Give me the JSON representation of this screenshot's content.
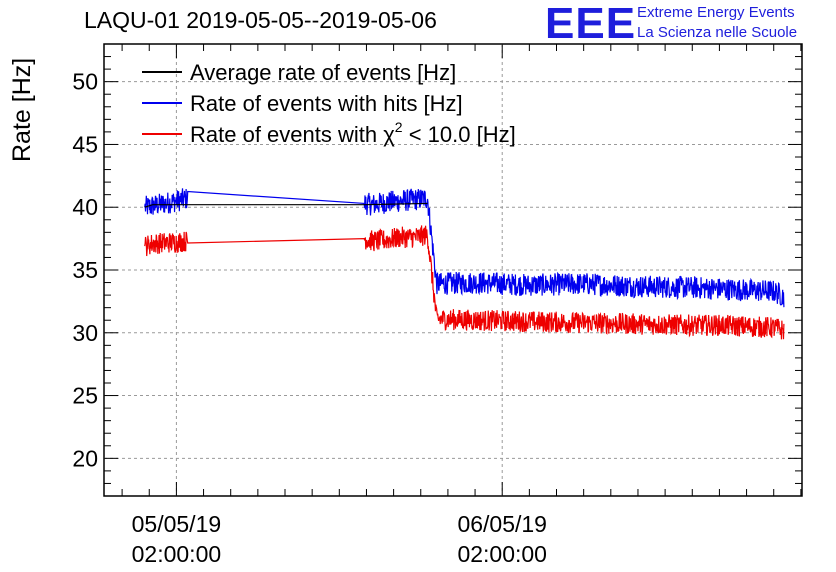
{
  "header": {
    "title": "LAQU-01 2019-05-05--2019-05-06",
    "logo_text": "EEE",
    "logo_line1": "Extreme Energy Events",
    "logo_line2": "La Scienza nelle Scuole"
  },
  "colors": {
    "average": "#000000",
    "hits": "#0000ee",
    "chi2": "#ee0000",
    "grid": "#9a9a9a",
    "logo": "#1e1edc"
  },
  "chart_data": {
    "type": "line",
    "title": "LAQU-01 2019-05-05--2019-05-06",
    "ylabel": "Rate [Hz]",
    "xlabel": "",
    "ylim": [
      17,
      53
    ],
    "xlim": [
      "2019-05-04 20:40",
      "2019-05-07 00:05"
    ],
    "y_ticks": [
      20,
      25,
      30,
      35,
      40,
      45,
      50
    ],
    "x_ticks": [
      {
        "x": "2019-05-05 02:00",
        "label_date": "05/05/19",
        "label_time": "02:00:00"
      },
      {
        "x": "2019-05-06 02:00",
        "label_date": "06/05/19",
        "label_time": "02:00:00"
      }
    ],
    "grid": true,
    "legend": "top-left",
    "series": [
      {
        "name": "Average rate of events [Hz]",
        "color": "#000000",
        "x": [
          "2019-05-04 23:40",
          "2019-05-05 00:15",
          "2019-05-05 15:50",
          "2019-05-05 20:30"
        ],
        "values": [
          40.0,
          40.2,
          40.2,
          40.3
        ],
        "noise": 0.0
      },
      {
        "name": "Rate of events with hits [Hz]",
        "color": "#0000ee",
        "x": [
          "2019-05-04 23:40",
          "2019-05-05 00:15",
          "2019-05-05 02:50",
          "2019-05-05 15:50",
          "2019-05-05 16:30",
          "2019-05-05 17:30",
          "2019-05-05 18:30",
          "2019-05-05 19:30",
          "2019-05-05 20:30",
          "2019-05-05 21:10",
          "2019-05-06 00:00",
          "2019-05-06 04:00",
          "2019-05-06 08:00",
          "2019-05-06 12:00",
          "2019-05-06 16:00",
          "2019-05-06 18:00",
          "2019-05-06 20:00",
          "2019-05-06 22:00",
          "2019-05-06 22:45"
        ],
        "values": [
          40.0,
          40.1,
          40.7,
          40.3,
          40.2,
          40.4,
          40.5,
          40.6,
          40.7,
          33.9,
          34.0,
          33.8,
          33.9,
          33.7,
          33.6,
          33.5,
          33.4,
          33.3,
          32.9
        ],
        "noise": 0.9
      },
      {
        "name": "Rate of events with χ² < 10.0 [Hz]",
        "color": "#ee0000",
        "x": [
          "2019-05-04 23:40",
          "2019-05-05 00:15",
          "2019-05-05 02:50",
          "2019-05-05 15:50",
          "2019-05-05 16:30",
          "2019-05-05 17:30",
          "2019-05-05 18:30",
          "2019-05-05 19:30",
          "2019-05-05 20:30",
          "2019-05-05 21:10",
          "2019-05-06 00:00",
          "2019-05-06 04:00",
          "2019-05-06 08:00",
          "2019-05-06 12:00",
          "2019-05-06 16:00",
          "2019-05-06 18:00",
          "2019-05-06 20:00",
          "2019-05-06 22:00",
          "2019-05-06 22:45"
        ],
        "values": [
          36.9,
          37.1,
          37.3,
          37.5,
          37.3,
          37.4,
          37.6,
          37.6,
          37.8,
          31.1,
          31.0,
          30.9,
          30.8,
          30.7,
          30.6,
          30.6,
          30.5,
          30.4,
          30.2
        ],
        "noise": 0.85
      }
    ],
    "legend_entries": [
      {
        "label": "Average rate of events [Hz]",
        "color": "#000000"
      },
      {
        "label": "Rate of events with hits [Hz]",
        "color": "#0000ee"
      },
      {
        "label_prefix": "Rate of events with ",
        "label_symbol": "χ",
        "label_sup": "2",
        "label_suffix": " < 10.0 [Hz]",
        "color": "#ee0000"
      }
    ]
  }
}
